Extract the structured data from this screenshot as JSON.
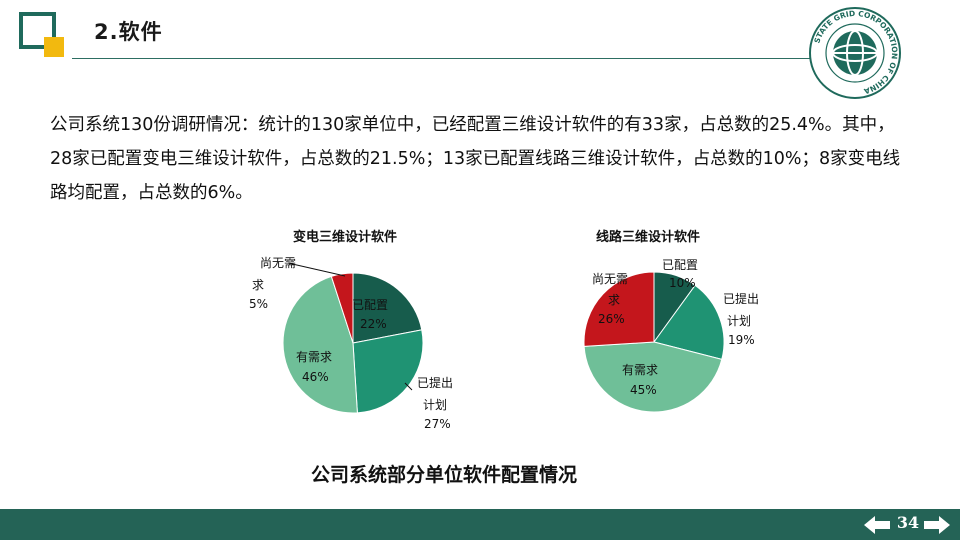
{
  "colors": {
    "brand_green": "#1f6a5c",
    "accent_yellow": "#f2b90f",
    "footer": "#246356",
    "slice_dark": "#175c4c",
    "slice_mid": "#1f9373",
    "slice_light": "#6fbf98",
    "slice_red": "#c4161c"
  },
  "header": {
    "title": "2.软件",
    "logo_icon": "logo-frame-icon",
    "seal_icon": "state-grid-seal-icon",
    "seal_text": "STATE GRID CORPORATION OF CHINA"
  },
  "intro": {
    "text": "公司系统130份调研情况：统计的130家单位中，已经配置三维设计软件的有33家，占总数的25.4%。其中，28家已配置变电三维设计软件，占总数的21.5%；13家已配置线路三维设计软件，占总数的10%；8家变电线路均配置，占总数的6%。"
  },
  "chart_data": [
    {
      "type": "pie",
      "title": "变电三维设计软件",
      "slices": [
        {
          "label": "已配置",
          "value": 22,
          "display": "22%",
          "color": "#175c4c"
        },
        {
          "label": "已提出计划",
          "value": 27,
          "display": "27%",
          "color": "#1f9373"
        },
        {
          "label": "有需求",
          "value": 46,
          "display": "46%",
          "color": "#6fbf98"
        },
        {
          "label": "尚无需求",
          "value": 5,
          "display": "5%",
          "color": "#c4161c"
        }
      ]
    },
    {
      "type": "pie",
      "title": "线路三维设计软件",
      "slices": [
        {
          "label": "已配置",
          "value": 10,
          "display": "10%",
          "color": "#175c4c"
        },
        {
          "label": "已提出计划",
          "value": 19,
          "display": "19%",
          "color": "#1f9373"
        },
        {
          "label": "有需求",
          "value": 45,
          "display": "45%",
          "color": "#6fbf98"
        },
        {
          "label": "尚无需求",
          "value": 26,
          "display": "26%",
          "color": "#c4161c"
        }
      ]
    }
  ],
  "caption": "公司系统部分单位软件配置情况",
  "footer": {
    "page_number": "34",
    "prev_icon": "arrow-left-icon",
    "next_icon": "arrow-right-icon"
  }
}
